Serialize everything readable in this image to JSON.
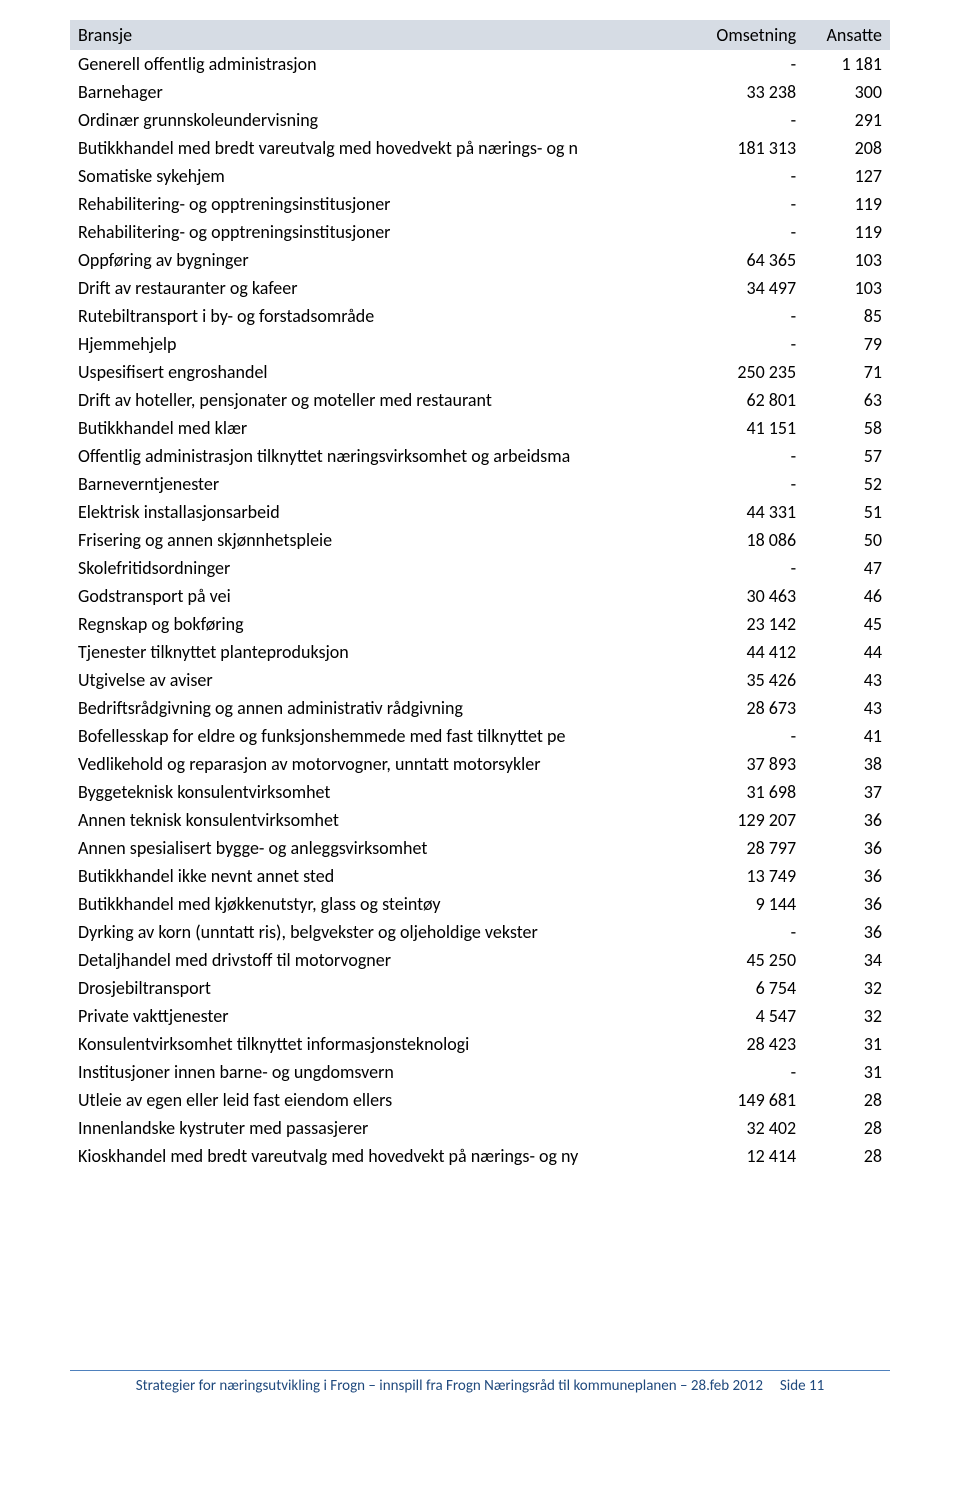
{
  "table": {
    "header": {
      "bransje": "Bransje",
      "omsetning": "Omsetning",
      "ansatte": "Ansatte"
    },
    "header_bg": "#d6dce4",
    "rows": [
      {
        "bransje": "Generell offentlig administrasjon",
        "omsetning": "-",
        "ansatte": "1 181"
      },
      {
        "bransje": "Barnehager",
        "omsetning": "33 238",
        "ansatte": "300"
      },
      {
        "bransje": "Ordinær grunnskoleundervisning",
        "omsetning": "-",
        "ansatte": "291"
      },
      {
        "bransje": "Butikkhandel med bredt vareutvalg med hovedvekt på nærings- og n",
        "omsetning": "181 313",
        "ansatte": "208"
      },
      {
        "bransje": "Somatiske sykehjem",
        "omsetning": "-",
        "ansatte": "127"
      },
      {
        "bransje": "Rehabilitering- og opptreningsinstitusjoner",
        "omsetning": "-",
        "ansatte": "119"
      },
      {
        "bransje": "Rehabilitering- og opptreningsinstitusjoner",
        "omsetning": "-",
        "ansatte": "119"
      },
      {
        "bransje": "Oppføring av bygninger",
        "omsetning": "64 365",
        "ansatte": "103"
      },
      {
        "bransje": "Drift av restauranter og kafeer",
        "omsetning": "34 497",
        "ansatte": "103"
      },
      {
        "bransje": "Rutebiltransport i by- og forstadsområde",
        "omsetning": "-",
        "ansatte": "85"
      },
      {
        "bransje": "Hjemmehjelp",
        "omsetning": "-",
        "ansatte": "79"
      },
      {
        "bransje": "Uspesifisert engroshandel",
        "omsetning": "250 235",
        "ansatte": "71"
      },
      {
        "bransje": "Drift av hoteller, pensjonater og moteller med restaurant",
        "omsetning": "62 801",
        "ansatte": "63"
      },
      {
        "bransje": "Butikkhandel med klær",
        "omsetning": "41 151",
        "ansatte": "58"
      },
      {
        "bransje": "Offentlig administrasjon tilknyttet næringsvirksomhet og arbeidsma",
        "omsetning": "-",
        "ansatte": "57"
      },
      {
        "bransje": "Barneverntjenester",
        "omsetning": "-",
        "ansatte": "52"
      },
      {
        "bransje": "Elektrisk installasjonsarbeid",
        "omsetning": "44 331",
        "ansatte": "51"
      },
      {
        "bransje": "Frisering og annen skjønnhetspleie",
        "omsetning": "18 086",
        "ansatte": "50"
      },
      {
        "bransje": "Skolefritidsordninger",
        "omsetning": "-",
        "ansatte": "47"
      },
      {
        "bransje": "Godstransport på vei",
        "omsetning": "30 463",
        "ansatte": "46"
      },
      {
        "bransje": "Regnskap og bokføring",
        "omsetning": "23 142",
        "ansatte": "45"
      },
      {
        "bransje": "Tjenester tilknyttet planteproduksjon",
        "omsetning": "44 412",
        "ansatte": "44"
      },
      {
        "bransje": "Utgivelse av aviser",
        "omsetning": "35 426",
        "ansatte": "43"
      },
      {
        "bransje": "Bedriftsrådgivning og annen administrativ rådgivning",
        "omsetning": "28 673",
        "ansatte": "43"
      },
      {
        "bransje": "Bofellesskap for eldre og funksjonshemmede med fast tilknyttet pe",
        "omsetning": "-",
        "ansatte": "41"
      },
      {
        "bransje": "Vedlikehold og reparasjon av motorvogner, unntatt motorsykler",
        "omsetning": "37 893",
        "ansatte": "38"
      },
      {
        "bransje": "Byggeteknisk konsulentvirksomhet",
        "omsetning": "31 698",
        "ansatte": "37"
      },
      {
        "bransje": "Annen teknisk konsulentvirksomhet",
        "omsetning": "129 207",
        "ansatte": "36"
      },
      {
        "bransje": "Annen spesialisert bygge- og anleggsvirksomhet",
        "omsetning": "28 797",
        "ansatte": "36"
      },
      {
        "bransje": "Butikkhandel ikke nevnt annet sted",
        "omsetning": "13 749",
        "ansatte": "36"
      },
      {
        "bransje": "Butikkhandel med kjøkkenutstyr, glass og steintøy",
        "omsetning": "9 144",
        "ansatte": "36"
      },
      {
        "bransje": "Dyrking av korn (unntatt ris), belgvekster og oljeholdige vekster",
        "omsetning": "-",
        "ansatte": "36"
      },
      {
        "bransje": "Detaljhandel med drivstoff til motorvogner",
        "omsetning": "45 250",
        "ansatte": "34"
      },
      {
        "bransje": "Drosjebiltransport",
        "omsetning": "6 754",
        "ansatte": "32"
      },
      {
        "bransje": "Private vakttjenester",
        "omsetning": "4 547",
        "ansatte": "32"
      },
      {
        "bransje": "Konsulentvirksomhet tilknyttet informasjonsteknologi",
        "omsetning": "28 423",
        "ansatte": "31"
      },
      {
        "bransje": "Institusjoner innen barne- og ungdomsvern",
        "omsetning": "-",
        "ansatte": "31"
      },
      {
        "bransje": "Utleie av egen eller leid fast eiendom ellers",
        "omsetning": "149 681",
        "ansatte": "28"
      },
      {
        "bransje": "Innenlandske kystruter med passasjerer",
        "omsetning": "32 402",
        "ansatte": "28"
      },
      {
        "bransje": "Kioskhandel med bredt vareutvalg med hovedvekt på nærings- og ny",
        "omsetning": "12 414",
        "ansatte": "28"
      }
    ]
  },
  "footer": {
    "text": "Strategier for næringsutvikling i Frogn – innspill fra Frogn Næringsråd til kommuneplanen – 28.feb 2012",
    "side_label": "Side",
    "page_number": "11",
    "rule_color": "#4f81bd",
    "text_color": "#1f497d"
  }
}
